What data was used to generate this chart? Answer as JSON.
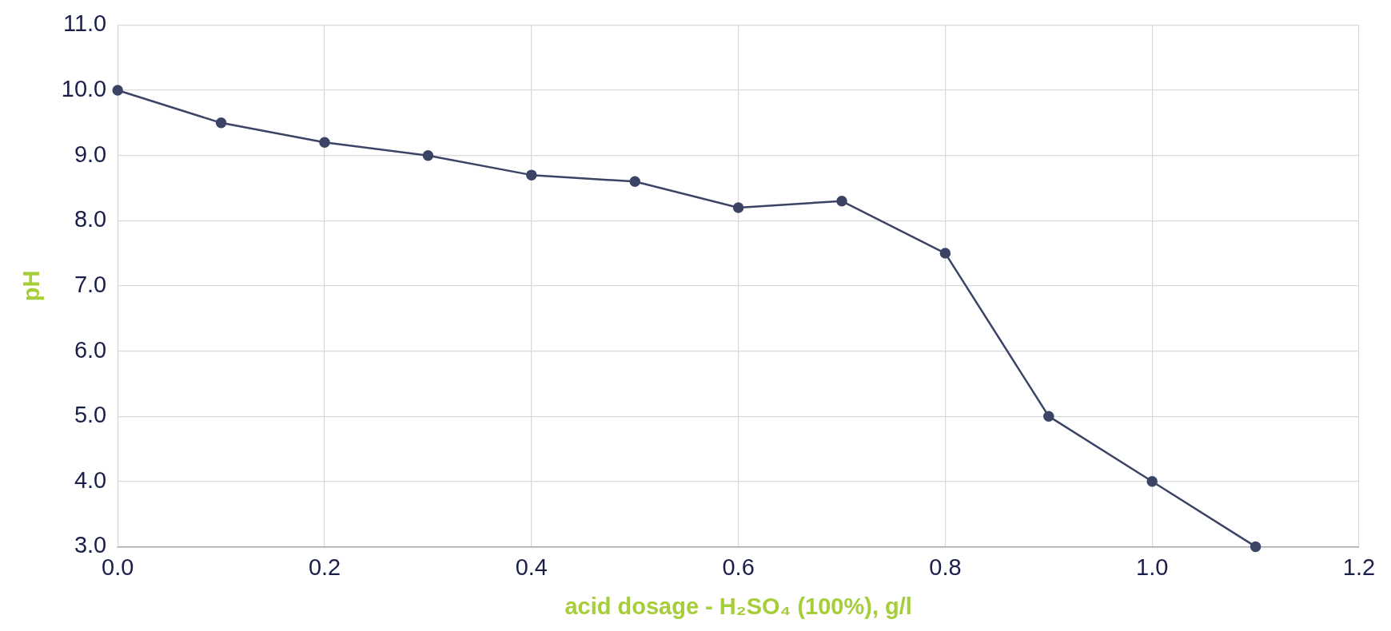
{
  "chart_data": {
    "type": "line",
    "xlabel": "acid dosage - H₂SO₄ (100%), g/l",
    "ylabel": "pH",
    "x": [
      0,
      0.1,
      0.2,
      0.3,
      0.4,
      0.5,
      0.6,
      0.7,
      0.8,
      0.9,
      1.0,
      1.1
    ],
    "series": [
      {
        "color": "#3c4466",
        "values": [
          10.0,
          9.5,
          9.2,
          9.0,
          8.7,
          8.6,
          8.2,
          8.3,
          7.5,
          5.0,
          4.0,
          3.0
        ]
      }
    ],
    "xlim": [
      0,
      1.2
    ],
    "xticks": [
      {
        "value": 0,
        "label": "0.0"
      },
      {
        "value": 0.2,
        "label": "0.2"
      },
      {
        "value": 0.4,
        "label": "0.4"
      },
      {
        "value": 0.6,
        "label": "0.6"
      },
      {
        "value": 0.8,
        "label": "0.8"
      },
      {
        "value": 1.0,
        "label": "1.0"
      },
      {
        "value": 1.2,
        "label": "1.2"
      }
    ],
    "ylim": [
      3,
      11
    ],
    "yticks": [
      {
        "value": 3,
        "label": "3.0"
      },
      {
        "value": 4,
        "label": "4.0"
      },
      {
        "value": 5,
        "label": "5.0"
      },
      {
        "value": 6,
        "label": "6.0"
      },
      {
        "value": 7,
        "label": "7.0"
      },
      {
        "value": 8,
        "label": "8.0"
      },
      {
        "value": 9,
        "label": "9.0"
      },
      {
        "value": 10,
        "label": "10.0"
      },
      {
        "value": 11,
        "label": "11.0"
      }
    ],
    "grid": true,
    "legend": false,
    "marker": "circle",
    "line_style": "solid"
  }
}
